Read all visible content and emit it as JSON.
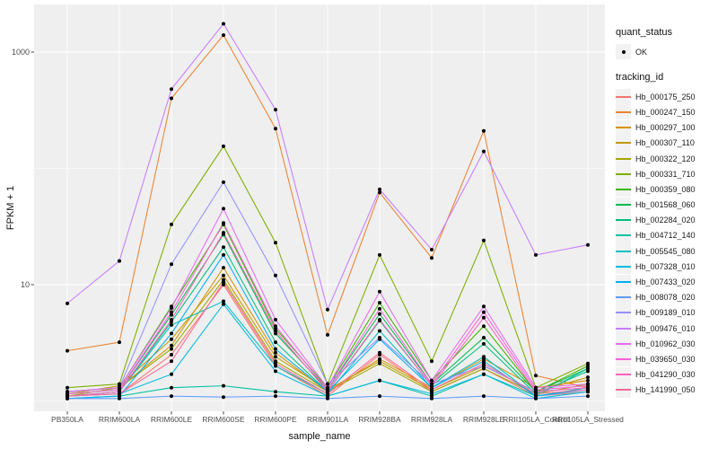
{
  "figure": {
    "background": "#FFFFFF",
    "panel_background": "#EFEFEF",
    "gridline_color": "#FFFFFF",
    "tick_text_color": "#4D4D4D",
    "title_text_color": "#111111",
    "point_color": "#000000"
  },
  "legend": {
    "quant_status_title": "quant_status",
    "quant_status_items": [
      {
        "label": "OK",
        "shape": "point",
        "color": "#000000"
      }
    ],
    "tracking_id_title": "tracking_id"
  },
  "chart_data": {
    "type": "line",
    "title": "",
    "xlabel": "sample_name",
    "ylabel": "FPKM + 1",
    "y_scale": "log10",
    "y_ticks": [
      10,
      1000
    ],
    "y_minor_gridlines": [
      1,
      100
    ],
    "ylim": [
      0.85,
      2400
    ],
    "grid": true,
    "legend_position": "right",
    "categories": [
      "PB350LA",
      "RRIM600LA",
      "RRIM600LE",
      "RRIM600SE",
      "RRIM600PE",
      "RRIM901LA",
      "RRIM928BA",
      "RRIM928LA",
      "RRIM928LE",
      "RRII105LA_Control",
      "RRII105LA_Stressed"
    ],
    "series": [
      {
        "name": "Hb_000175_250",
        "color": "#F8766D",
        "values": [
          1.1,
          1.15,
          2.5,
          10.0,
          2.0,
          1.1,
          2.5,
          1.2,
          1.9,
          1.1,
          1.2
        ]
      },
      {
        "name": "Hb_000247_150",
        "color": "#EA8331",
        "values": [
          2.7,
          3.2,
          400,
          1400,
          220,
          3.7,
          62,
          17,
          210,
          1.65,
          1.3
        ]
      },
      {
        "name": "Hb_000297_100",
        "color": "#D89000",
        "values": [
          1.2,
          1.3,
          3.0,
          14,
          2.6,
          1.2,
          2.3,
          1.3,
          2.3,
          1.3,
          1.5
        ]
      },
      {
        "name": "Hb_000307_110",
        "color": "#C09B00",
        "values": [
          1.15,
          1.35,
          3.4,
          12,
          2.4,
          1.25,
          2.2,
          1.25,
          2.0,
          1.2,
          1.6
        ]
      },
      {
        "name": "Hb_000322_120",
        "color": "#A3A500",
        "values": [
          1.1,
          1.3,
          2.8,
          11,
          2.2,
          1.2,
          2.1,
          1.2,
          1.9,
          1.15,
          1.4
        ]
      },
      {
        "name": "Hb_000331_710",
        "color": "#7CAE00",
        "values": [
          1.3,
          1.4,
          33,
          155,
          23,
          1.4,
          18,
          2.2,
          24,
          1.3,
          2.1
        ]
      },
      {
        "name": "Hb_000359_080",
        "color": "#39B600",
        "values": [
          1.2,
          1.3,
          6.5,
          33,
          4.2,
          1.3,
          7.0,
          1.5,
          4.4,
          1.2,
          2.0
        ]
      },
      {
        "name": "Hb_001568_060",
        "color": "#00BB4E",
        "values": [
          1.15,
          1.25,
          5.5,
          27,
          3.8,
          1.25,
          5.6,
          1.4,
          3.5,
          1.2,
          1.9
        ]
      },
      {
        "name": "Hb_002284_020",
        "color": "#00BF7D",
        "values": [
          1.1,
          1.2,
          4.8,
          21,
          3.2,
          1.2,
          4.9,
          1.35,
          3.1,
          1.15,
          1.8
        ]
      },
      {
        "name": "Hb_004712_140",
        "color": "#00C1A3",
        "values": [
          1.05,
          1.1,
          1.3,
          1.35,
          1.2,
          1.1,
          1.5,
          1.1,
          1.7,
          1.1,
          1.9
        ]
      },
      {
        "name": "Hb_005545_080",
        "color": "#00BFC4",
        "values": [
          1.1,
          1.2,
          4.5,
          7.2,
          2.0,
          1.15,
          4.0,
          1.3,
          2.4,
          1.1,
          1.3
        ]
      },
      {
        "name": "Hb_007328_010",
        "color": "#00BAE0",
        "values": [
          1.1,
          1.15,
          1.7,
          6.8,
          1.8,
          1.1,
          1.5,
          1.15,
          1.7,
          1.05,
          1.2
        ]
      },
      {
        "name": "Hb_007433_020",
        "color": "#00B0F6",
        "values": [
          1.05,
          1.1,
          3.8,
          18,
          2.8,
          1.2,
          3.4,
          1.3,
          2.2,
          1.1,
          1.25
        ]
      },
      {
        "name": "Hb_008078_020",
        "color": "#619CFF",
        "values": [
          1.05,
          1.05,
          1.1,
          1.08,
          1.1,
          1.05,
          1.1,
          1.05,
          1.1,
          1.05,
          1.1
        ]
      },
      {
        "name": "Hb_009189_010",
        "color": "#9590FF",
        "values": [
          1.2,
          1.3,
          15,
          76,
          12,
          1.4,
          3.5,
          1.4,
          2.0,
          1.2,
          1.3
        ]
      },
      {
        "name": "Hb_009476_010",
        "color": "#C77CFF",
        "values": [
          6.9,
          16,
          480,
          1750,
          320,
          6.1,
          66,
          20,
          140,
          18,
          22
        ]
      },
      {
        "name": "Hb_010962_030",
        "color": "#E76BF3",
        "values": [
          1.2,
          1.3,
          6.3,
          45,
          5.0,
          1.3,
          8.7,
          1.5,
          6.5,
          1.3,
          1.4
        ]
      },
      {
        "name": "Hb_039650_030",
        "color": "#FA62DB",
        "values": [
          1.15,
          1.25,
          5.8,
          34,
          4.4,
          1.25,
          6.2,
          1.4,
          5.8,
          1.25,
          1.35
        ]
      },
      {
        "name": "Hb_041290_030",
        "color": "#FF62BC",
        "values": [
          1.1,
          1.2,
          5.0,
          28,
          4.0,
          1.2,
          5.0,
          1.35,
          5.2,
          1.2,
          1.3
        ]
      },
      {
        "name": "Hb_141990_050",
        "color": "#FF6A98",
        "values": [
          1.1,
          1.15,
          2.2,
          10.5,
          2.1,
          1.15,
          2.6,
          1.25,
          2.1,
          1.15,
          1.25
        ]
      }
    ]
  }
}
